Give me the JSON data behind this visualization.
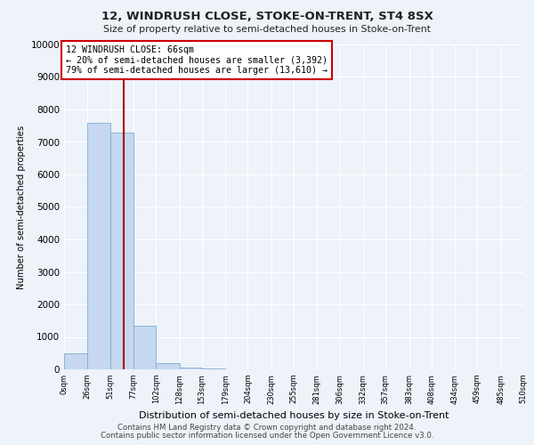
{
  "title": "12, WINDRUSH CLOSE, STOKE-ON-TRENT, ST4 8SX",
  "subtitle": "Size of property relative to semi-detached houses in Stoke-on-Trent",
  "xlabel": "Distribution of semi-detached houses by size in Stoke-on-Trent",
  "ylabel": "Number of semi-detached properties",
  "footer1": "Contains HM Land Registry data © Crown copyright and database right 2024.",
  "footer2": "Contains public sector information licensed under the Open Government Licence v3.0.",
  "bar_edges": [
    0,
    26,
    51,
    77,
    102,
    128,
    153,
    179,
    204,
    230,
    255,
    281,
    306,
    332,
    357,
    383,
    408,
    434,
    459,
    485,
    510
  ],
  "bar_heights": [
    500,
    7600,
    7300,
    1350,
    200,
    50,
    25,
    10,
    5,
    2,
    0,
    0,
    0,
    0,
    0,
    0,
    0,
    0,
    0,
    0
  ],
  "bar_color": "#c5d8ef",
  "bar_edge_color": "#7aafd4",
  "property_size": 66,
  "property_line_color": "#aa0000",
  "annotation_line1": "12 WINDRUSH CLOSE: 66sqm",
  "annotation_line2": "← 20% of semi-detached houses are smaller (3,392)",
  "annotation_line3": "79% of semi-detached houses are larger (13,610) →",
  "annotation_box_color": "#ffffff",
  "annotation_box_edge_color": "#cc0000",
  "ylim": [
    0,
    10000
  ],
  "yticks": [
    0,
    1000,
    2000,
    3000,
    4000,
    5000,
    6000,
    7000,
    8000,
    9000,
    10000
  ],
  "xtick_labels": [
    "0sqm",
    "26sqm",
    "51sqm",
    "77sqm",
    "102sqm",
    "128sqm",
    "153sqm",
    "179sqm",
    "204sqm",
    "230sqm",
    "255sqm",
    "281sqm",
    "306sqm",
    "332sqm",
    "357sqm",
    "383sqm",
    "408sqm",
    "434sqm",
    "459sqm",
    "485sqm",
    "510sqm"
  ],
  "background_color": "#eef2f9",
  "grid_color": "#ffffff",
  "xlim": [
    0,
    510
  ]
}
